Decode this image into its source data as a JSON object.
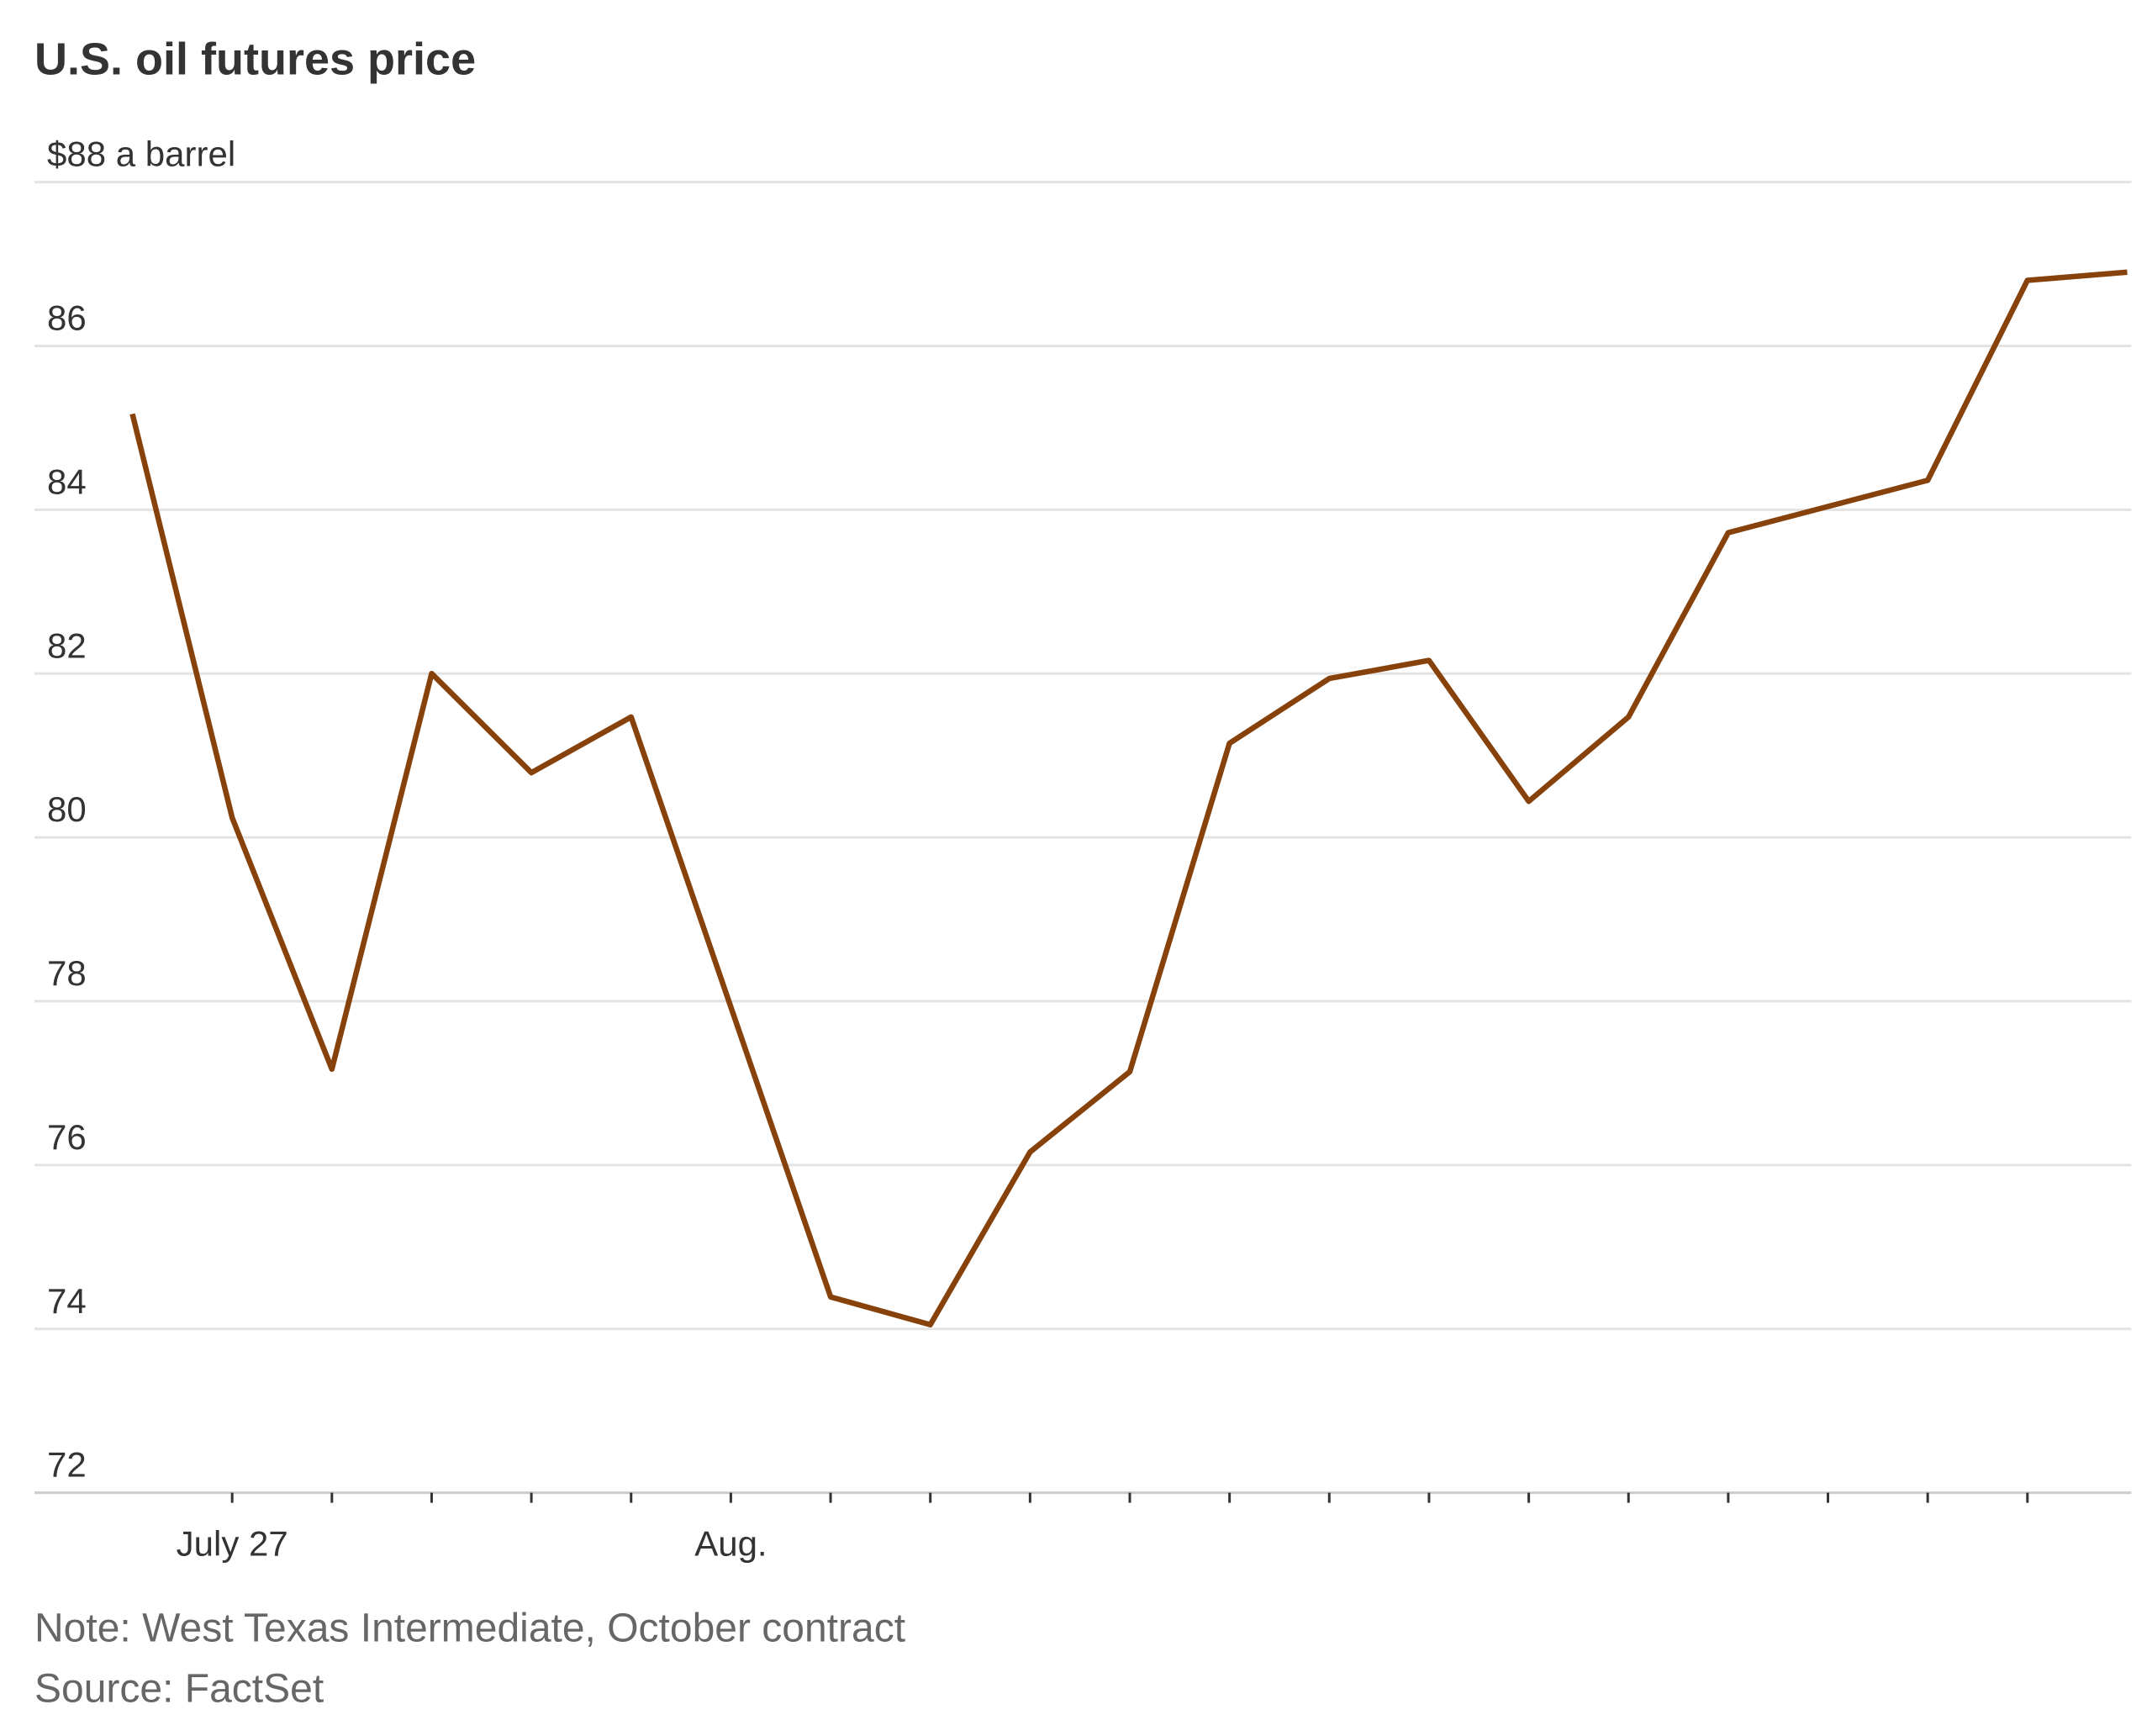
{
  "chart_data": {
    "type": "line",
    "title": "U.S. oil futures price",
    "categories": [
      null,
      "July 27",
      null,
      null,
      null,
      null,
      "Aug.",
      null,
      null,
      null,
      null,
      null,
      null,
      null,
      null,
      null,
      null,
      null,
      null,
      null,
      null
    ],
    "series": [
      {
        "name": "West Texas Intermediate",
        "color": "#87420c",
        "values": [
          85.17,
          80.24,
          77.17,
          82.0,
          80.79,
          81.47,
          77.93,
          74.39,
          74.05,
          76.16,
          77.14,
          81.15,
          81.94,
          82.16,
          80.44,
          81.47,
          83.72,
          84.04,
          84.36,
          86.8,
          86.9
        ]
      }
    ],
    "ylim": [
      72,
      88
    ],
    "yticks": [
      72,
      74,
      76,
      78,
      80,
      82,
      84,
      86,
      {
        "value": 88,
        "label": "$88 a barrel"
      }
    ],
    "grid": true,
    "note": "Note: West Texas Intermediate, October contract",
    "source": "Source: FactSet"
  }
}
